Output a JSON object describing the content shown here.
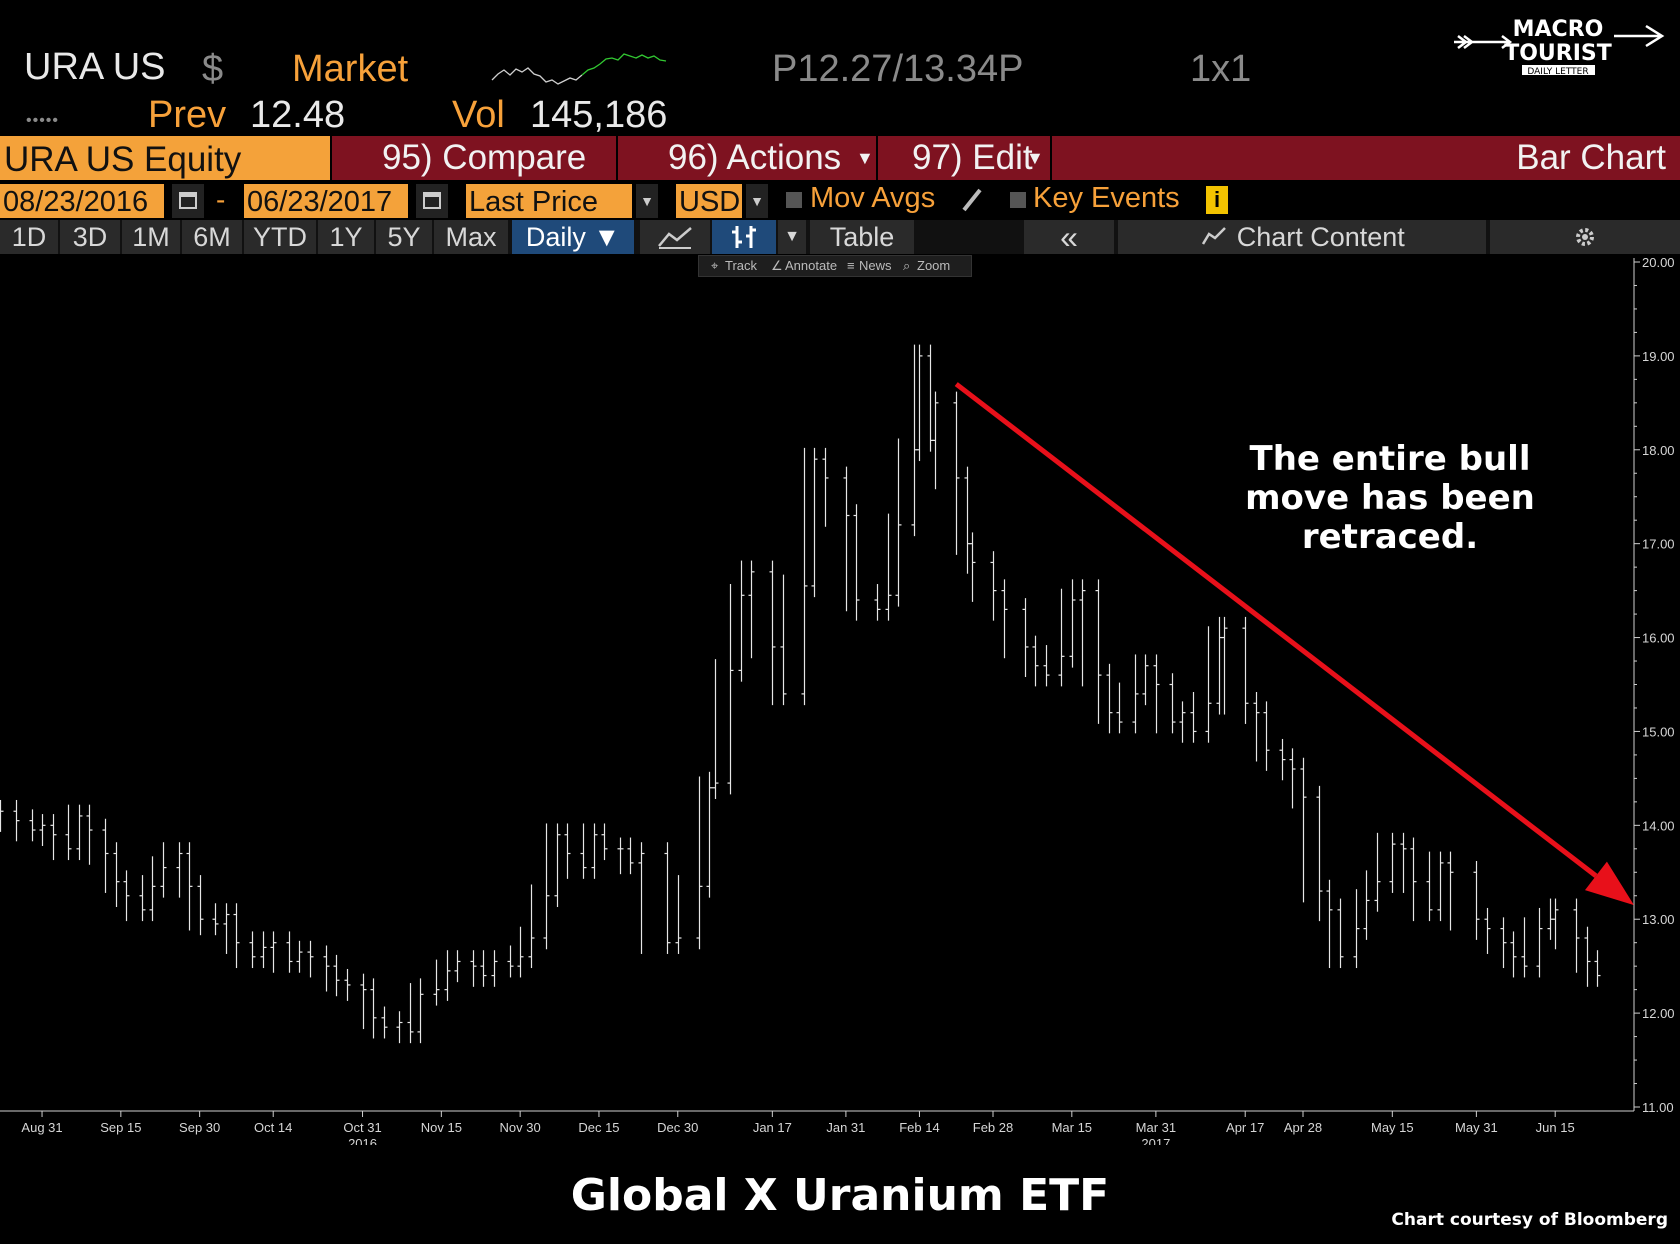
{
  "header": {
    "ticker": "URA US",
    "currency_symbol": "$",
    "market_label": "Market",
    "bid_ask": "P12.27/13.34P",
    "size": "1x1",
    "dots": "•••••",
    "prev_label": "Prev",
    "prev_value": "12.48",
    "vol_label": "Vol",
    "vol_value": "145,186"
  },
  "logo": {
    "line1": "MACRO",
    "line2": "TOURIST",
    "line3": "DAILY LETTER"
  },
  "command_bar": {
    "security": "URA US Equity",
    "compare": "95) Compare",
    "actions": "96) Actions",
    "edit": "97) Edit",
    "chart_type": "Bar Chart"
  },
  "settings_row": {
    "start_date": "08/23/2016",
    "dash": "-",
    "end_date": "06/23/2017",
    "field": "Last Price",
    "currency": "USD",
    "mov_avgs": "Mov Avgs",
    "key_events": "Key Events",
    "info_badge": "i"
  },
  "range_row": {
    "ranges": [
      "1D",
      "3D",
      "1M",
      "6M",
      "YTD",
      "1Y",
      "5Y",
      "Max"
    ],
    "period": "Daily",
    "table": "Table",
    "collapse": "«",
    "chart_content": "Chart Content"
  },
  "chart_toolbar": {
    "track": "Track",
    "annotate": "Annotate",
    "news": "News",
    "zoom": "Zoom"
  },
  "annotation": [
    "The entire bull",
    "move has been",
    "retraced."
  ],
  "caption": {
    "title": "Global X Uranium ETF",
    "credit": "Chart courtesy of Bloomberg"
  },
  "chart_data": {
    "type": "bar",
    "subtype": "ohlc",
    "grid": false,
    "y_axis_side": "right",
    "ylim": [
      11,
      20
    ],
    "y_ticks": [
      "11.00",
      "12.00",
      "13.00",
      "14.00",
      "15.00",
      "16.00",
      "17.00",
      "18.00",
      "19.00",
      "20.00"
    ],
    "x_ticks": [
      {
        "label": "Aug 31",
        "date": "2016-08-31"
      },
      {
        "label": "Sep 15",
        "date": "2016-09-15"
      },
      {
        "label": "Sep 30",
        "date": "2016-09-30"
      },
      {
        "label": "Oct 14",
        "date": "2016-10-14"
      },
      {
        "label": "Oct 31",
        "date": "2016-10-31"
      },
      {
        "label": "Nov 15",
        "date": "2016-11-15"
      },
      {
        "label": "Nov 30",
        "date": "2016-11-30"
      },
      {
        "label": "Dec 15",
        "date": "2016-12-15"
      },
      {
        "label": "Dec 30",
        "date": "2016-12-30"
      },
      {
        "label": "Jan 17",
        "date": "2017-01-17"
      },
      {
        "label": "Jan 31",
        "date": "2017-01-31"
      },
      {
        "label": "Feb 14",
        "date": "2017-02-14"
      },
      {
        "label": "Feb 28",
        "date": "2017-02-28"
      },
      {
        "label": "Mar 15",
        "date": "2017-03-15"
      },
      {
        "label": "Mar 31",
        "date": "2017-03-31"
      },
      {
        "label": "Apr 17",
        "date": "2017-04-17"
      },
      {
        "label": "Apr 28",
        "date": "2017-04-28"
      },
      {
        "label": "May 15",
        "date": "2017-05-15"
      },
      {
        "label": "May 31",
        "date": "2017-05-31"
      },
      {
        "label": "Jun 15",
        "date": "2017-06-15"
      }
    ],
    "year_labels": [
      {
        "label": "2016",
        "date": "2016-10-31"
      },
      {
        "label": "2017",
        "date": "2017-03-31"
      }
    ],
    "x_range": [
      "2016-08-23",
      "2017-06-30"
    ],
    "series": [
      {
        "values": [
          {
            "date": "2016-08-23",
            "close": 14.15
          },
          {
            "date": "2016-08-26",
            "close": 14.05
          },
          {
            "date": "2016-08-29",
            "close": 13.95
          },
          {
            "date": "2016-08-31",
            "close": 14.0
          },
          {
            "date": "2016-09-02",
            "close": 13.9
          },
          {
            "date": "2016-09-05",
            "close": 13.75
          },
          {
            "date": "2016-09-07",
            "close": 14.1
          },
          {
            "date": "2016-09-09",
            "close": 13.95
          },
          {
            "date": "2016-09-12",
            "close": 13.7
          },
          {
            "date": "2016-09-14",
            "close": 13.4
          },
          {
            "date": "2016-09-16",
            "close": 13.25
          },
          {
            "date": "2016-09-19",
            "close": 13.1
          },
          {
            "date": "2016-09-21",
            "close": 13.35
          },
          {
            "date": "2016-09-23",
            "close": 13.55
          },
          {
            "date": "2016-09-26",
            "close": 13.7
          },
          {
            "date": "2016-09-28",
            "close": 13.35
          },
          {
            "date": "2016-09-30",
            "close": 13.0
          },
          {
            "date": "2016-10-03",
            "close": 12.95
          },
          {
            "date": "2016-10-05",
            "close": 13.05
          },
          {
            "date": "2016-10-07",
            "close": 12.75
          },
          {
            "date": "2016-10-10",
            "close": 12.6
          },
          {
            "date": "2016-10-12",
            "close": 12.7
          },
          {
            "date": "2016-10-14",
            "close": 12.75
          },
          {
            "date": "2016-10-17",
            "close": 12.55
          },
          {
            "date": "2016-10-19",
            "close": 12.65
          },
          {
            "date": "2016-10-21",
            "close": 12.6
          },
          {
            "date": "2016-10-24",
            "close": 12.5
          },
          {
            "date": "2016-10-26",
            "close": 12.35
          },
          {
            "date": "2016-10-28",
            "close": 12.3
          },
          {
            "date": "2016-10-31",
            "close": 12.25
          },
          {
            "date": "2016-11-02",
            "close": 11.95
          },
          {
            "date": "2016-11-04",
            "close": 11.85
          },
          {
            "date": "2016-11-07",
            "close": 11.9
          },
          {
            "date": "2016-11-09",
            "close": 11.8
          },
          {
            "date": "2016-11-11",
            "close": 12.2
          },
          {
            "date": "2016-11-14",
            "close": 12.25
          },
          {
            "date": "2016-11-16",
            "close": 12.45
          },
          {
            "date": "2016-11-18",
            "close": 12.55
          },
          {
            "date": "2016-11-21",
            "close": 12.5
          },
          {
            "date": "2016-11-23",
            "close": 12.4
          },
          {
            "date": "2016-11-25",
            "close": 12.55
          },
          {
            "date": "2016-11-28",
            "close": 12.5
          },
          {
            "date": "2016-11-30",
            "close": 12.6
          },
          {
            "date": "2016-12-02",
            "close": 12.8
          },
          {
            "date": "2016-12-05",
            "close": 13.25
          },
          {
            "date": "2016-12-07",
            "close": 13.9
          },
          {
            "date": "2016-12-09",
            "close": 13.7
          },
          {
            "date": "2016-12-12",
            "close": 13.55
          },
          {
            "date": "2016-12-14",
            "close": 13.9
          },
          {
            "date": "2016-12-16",
            "close": 13.75
          },
          {
            "date": "2016-12-19",
            "close": 13.75
          },
          {
            "date": "2016-12-21",
            "close": 13.6
          },
          {
            "date": "2016-12-23",
            "close": 13.7
          },
          {
            "date": "2016-12-28",
            "close": 12.75
          },
          {
            "date": "2016-12-30",
            "close": 12.8
          },
          {
            "date": "2017-01-03",
            "close": 13.35
          },
          {
            "date": "2017-01-05",
            "close": 14.4
          },
          {
            "date": "2017-01-06",
            "close": 14.45
          },
          {
            "date": "2017-01-09",
            "close": 15.65
          },
          {
            "date": "2017-01-11",
            "close": 16.45
          },
          {
            "date": "2017-01-13",
            "close": 16.7
          },
          {
            "date": "2017-01-17",
            "close": 15.9
          },
          {
            "date": "2017-01-19",
            "close": 15.4
          },
          {
            "date": "2017-01-23",
            "close": 16.55
          },
          {
            "date": "2017-01-25",
            "close": 17.9
          },
          {
            "date": "2017-01-27",
            "close": 17.7
          },
          {
            "date": "2017-01-31",
            "close": 17.3
          },
          {
            "date": "2017-02-02",
            "close": 16.4
          },
          {
            "date": "2017-02-06",
            "close": 16.3
          },
          {
            "date": "2017-02-08",
            "close": 16.45
          },
          {
            "date": "2017-02-10",
            "close": 17.2
          },
          {
            "date": "2017-02-13",
            "close": 18.0
          },
          {
            "date": "2017-02-14",
            "close": 19.0
          },
          {
            "date": "2017-02-16",
            "close": 18.1
          },
          {
            "date": "2017-02-17",
            "close": 18.5
          },
          {
            "date": "2017-02-21",
            "close": 17.7
          },
          {
            "date": "2017-02-23",
            "close": 17.0
          },
          {
            "date": "2017-02-24",
            "close": 16.8
          },
          {
            "date": "2017-02-28",
            "close": 16.5
          },
          {
            "date": "2017-03-02",
            "close": 16.3
          },
          {
            "date": "2017-03-06",
            "close": 15.9
          },
          {
            "date": "2017-03-08",
            "close": 15.7
          },
          {
            "date": "2017-03-10",
            "close": 15.6
          },
          {
            "date": "2017-03-13",
            "close": 15.8
          },
          {
            "date": "2017-03-15",
            "close": 16.4
          },
          {
            "date": "2017-03-17",
            "close": 16.5
          },
          {
            "date": "2017-03-20",
            "close": 15.6
          },
          {
            "date": "2017-03-22",
            "close": 15.2
          },
          {
            "date": "2017-03-24",
            "close": 15.1
          },
          {
            "date": "2017-03-27",
            "close": 15.4
          },
          {
            "date": "2017-03-29",
            "close": 15.7
          },
          {
            "date": "2017-03-31",
            "close": 15.5
          },
          {
            "date": "2017-04-03",
            "close": 15.1
          },
          {
            "date": "2017-04-05",
            "close": 15.2
          },
          {
            "date": "2017-04-07",
            "close": 15.0
          },
          {
            "date": "2017-04-10",
            "close": 15.3
          },
          {
            "date": "2017-04-12",
            "close": 16.0
          },
          {
            "date": "2017-04-13",
            "close": 16.1
          },
          {
            "date": "2017-04-17",
            "close": 15.3
          },
          {
            "date": "2017-04-19",
            "close": 15.2
          },
          {
            "date": "2017-04-21",
            "close": 14.8
          },
          {
            "date": "2017-04-24",
            "close": 14.7
          },
          {
            "date": "2017-04-26",
            "close": 14.6
          },
          {
            "date": "2017-04-28",
            "close": 14.3
          },
          {
            "date": "2017-05-01",
            "close": 13.3
          },
          {
            "date": "2017-05-03",
            "close": 13.1
          },
          {
            "date": "2017-05-05",
            "close": 12.6
          },
          {
            "date": "2017-05-08",
            "close": 12.9
          },
          {
            "date": "2017-05-10",
            "close": 13.2
          },
          {
            "date": "2017-05-12",
            "close": 13.4
          },
          {
            "date": "2017-05-15",
            "close": 13.8
          },
          {
            "date": "2017-05-17",
            "close": 13.75
          },
          {
            "date": "2017-05-19",
            "close": 13.4
          },
          {
            "date": "2017-05-22",
            "close": 13.1
          },
          {
            "date": "2017-05-24",
            "close": 13.6
          },
          {
            "date": "2017-05-26",
            "close": 13.5
          },
          {
            "date": "2017-05-31",
            "close": 13.0
          },
          {
            "date": "2017-06-02",
            "close": 12.9
          },
          {
            "date": "2017-06-05",
            "close": 12.75
          },
          {
            "date": "2017-06-07",
            "close": 12.6
          },
          {
            "date": "2017-06-09",
            "close": 12.5
          },
          {
            "date": "2017-06-12",
            "close": 12.9
          },
          {
            "date": "2017-06-14",
            "close": 13.0
          },
          {
            "date": "2017-06-15",
            "close": 13.1
          },
          {
            "date": "2017-06-19",
            "close": 12.8
          },
          {
            "date": "2017-06-21",
            "close": 12.55
          },
          {
            "date": "2017-06-23",
            "close": 12.4
          }
        ]
      }
    ],
    "trend_arrow": {
      "from": {
        "date": "2017-02-21",
        "y": 18.7
      },
      "to": {
        "date": "2017-06-30",
        "y": 13.15
      },
      "color": "#e8101a"
    }
  },
  "colors": {
    "accent_orange": "#f7a13a",
    "command_bar": "#7e1220",
    "selected_tab": "#1f4a7a",
    "arrow": "#e8101a"
  },
  "icons": [
    "calendar-icon",
    "pencil-icon",
    "line-chart-icon",
    "bar-chart-icon",
    "gear-icon",
    "chart-content-icon",
    "crosshair-icon"
  ]
}
